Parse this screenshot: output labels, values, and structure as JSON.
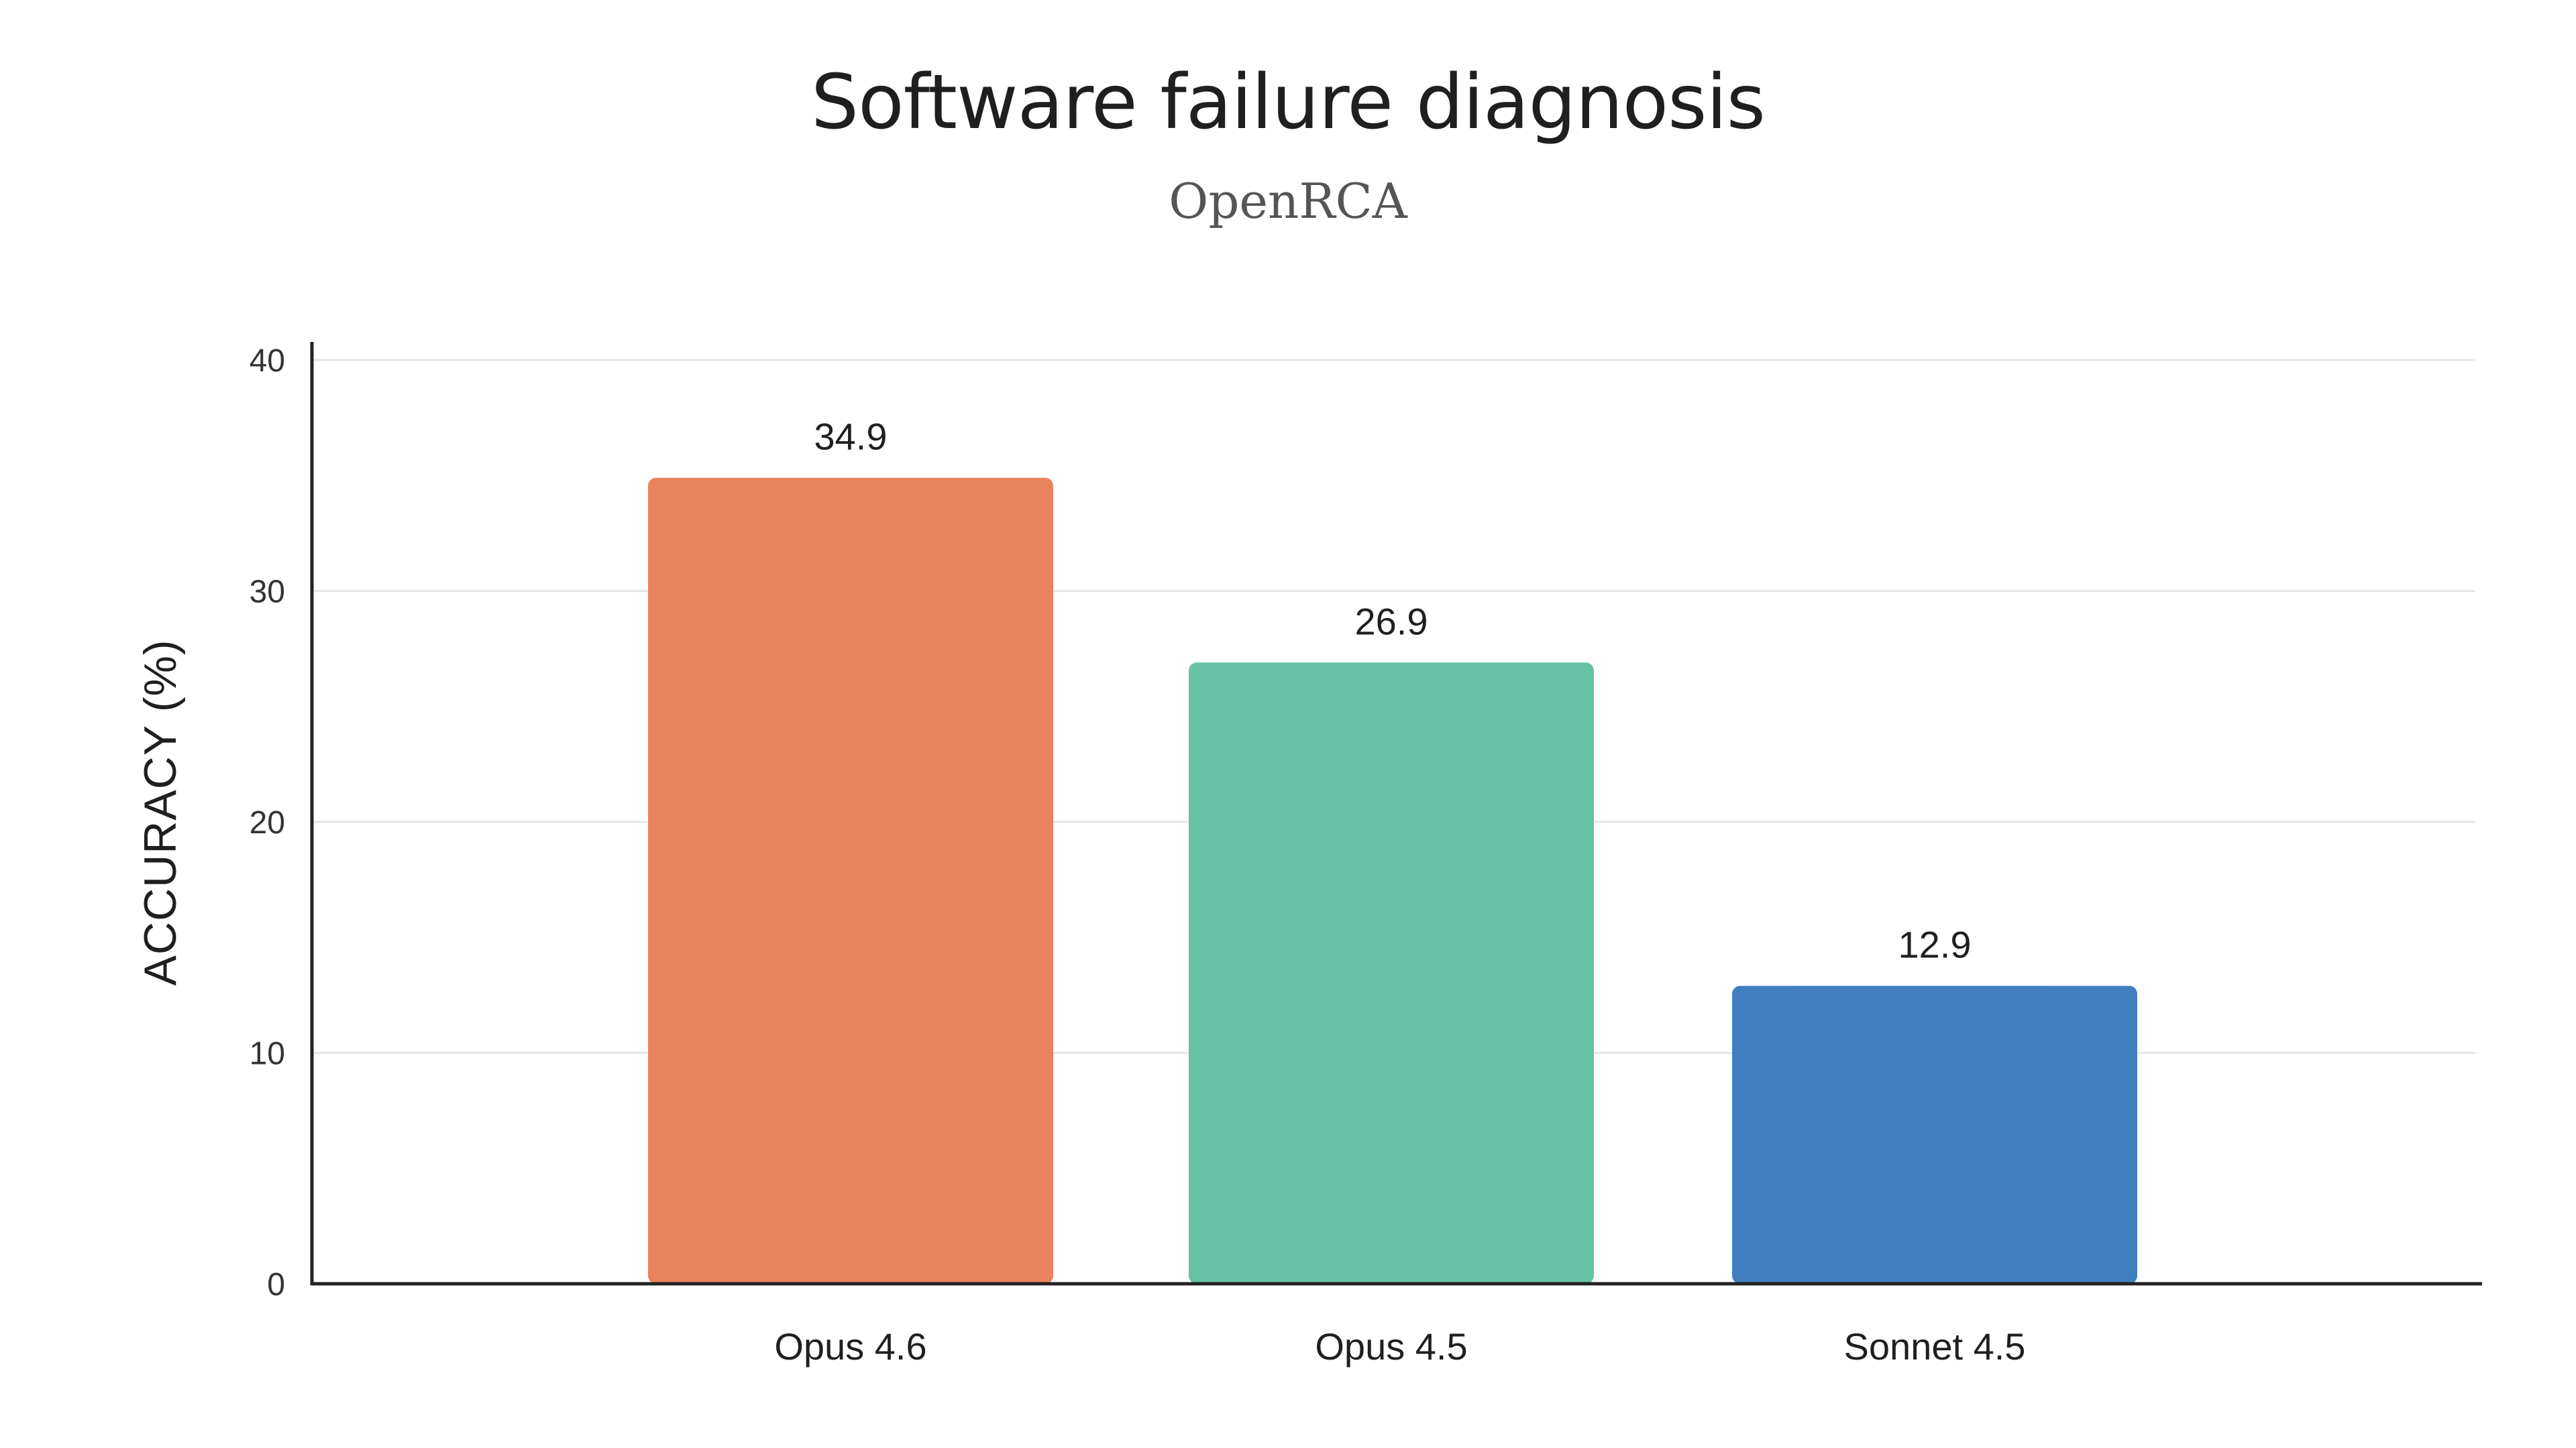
{
  "chart_data": {
    "type": "bar",
    "title": "Software failure diagnosis",
    "subtitle": "OpenRCA",
    "xlabel": "",
    "ylabel": "ACCURACY (%)",
    "categories": [
      "Opus 4.6",
      "Opus 4.5",
      "Sonnet 4.5"
    ],
    "values": [
      34.9,
      26.9,
      12.9
    ],
    "value_labels": [
      "34.9",
      "26.9",
      "12.9"
    ],
    "colors": [
      "#EB825E",
      "#66C2A5",
      "#3F7FBF"
    ],
    "ylim": [
      0,
      40
    ],
    "yticks": [
      0,
      10,
      20,
      30,
      40
    ],
    "grid": true,
    "legend": "none"
  }
}
